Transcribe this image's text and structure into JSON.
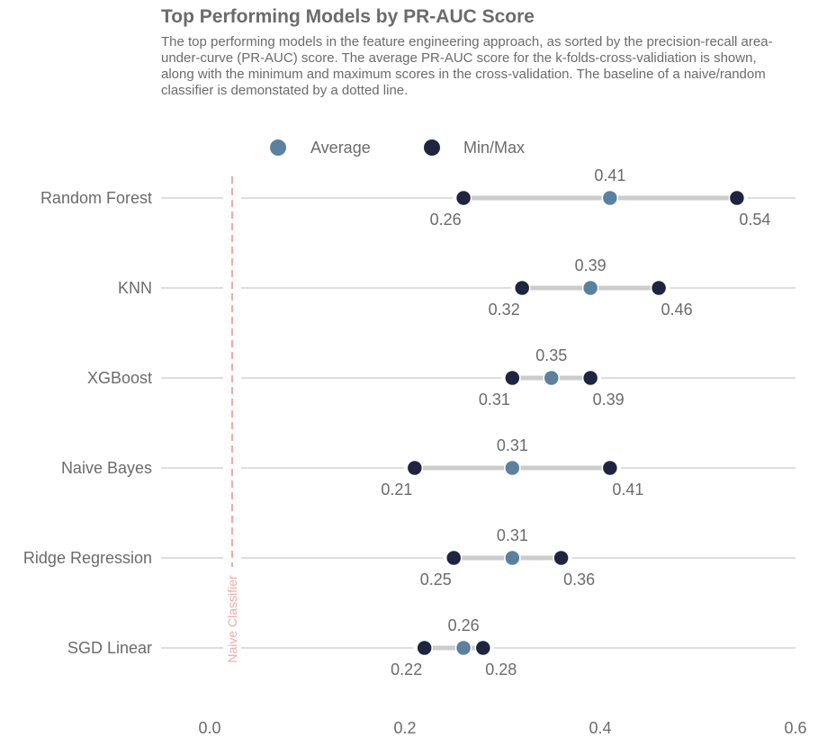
{
  "chart_data": {
    "type": "dumbbell",
    "title": "Top Performing Models by PR-AUC Score",
    "subtitle": "The top performing models in the feature engineering approach, as sorted by the precision-recall area-under-curve (PR-AUC) score. The average PR-AUC score for the k-folds-cross-validiation is shown, along with the minimum and maximum scores in the cross-validation. The baseline of a naive/random classifier is demonstated by a dotted line.",
    "legend": [
      {
        "name": "Average",
        "color": "#5b819f"
      },
      {
        "name": "Min/Max",
        "color": "#1f2540"
      }
    ],
    "categories": [
      "Random Forest",
      "KNN",
      "XGBoost",
      "Naive Bayes",
      "Ridge Regression",
      "SGD Linear"
    ],
    "series": [
      {
        "name": "Min",
        "values": [
          0.26,
          0.32,
          0.31,
          0.21,
          0.25,
          0.22
        ],
        "labels": [
          "0.26",
          "0.32",
          "0.31",
          "0.21",
          "0.25",
          "0.22"
        ]
      },
      {
        "name": "Average",
        "values": [
          0.41,
          0.39,
          0.35,
          0.31,
          0.31,
          0.26
        ],
        "labels": [
          "0.41",
          "0.39",
          "0.35",
          "0.31",
          "0.31",
          "0.26"
        ]
      },
      {
        "name": "Max",
        "values": [
          0.54,
          0.46,
          0.39,
          0.41,
          0.36,
          0.28
        ],
        "labels": [
          "0.54",
          "0.46",
          "0.39",
          "0.41",
          "0.36",
          "0.28"
        ]
      }
    ],
    "xlim": [
      0.0,
      0.6
    ],
    "xticks": [
      0.0,
      0.2,
      0.4,
      0.6
    ],
    "xtick_labels": [
      "0.0",
      "0.2",
      "0.4",
      "0.6"
    ],
    "reference_line": {
      "value": 0.023,
      "label": "Naive Classifier",
      "color": "#f0aaa5",
      "style": "dashed"
    },
    "colors": {
      "average": "#5b819f",
      "minmax": "#1f2540",
      "bar": "#cccccc",
      "row_line": "#d4d4d4",
      "text": "#6b6b6b"
    }
  }
}
